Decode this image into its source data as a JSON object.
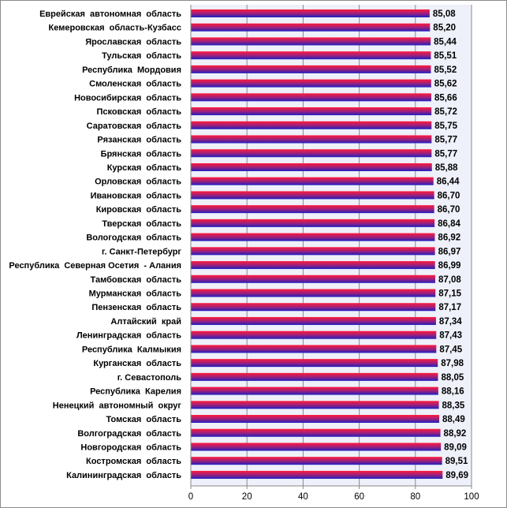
{
  "chart_data": {
    "type": "bar",
    "orientation": "horizontal",
    "categories": [
      "Еврейская  автономная  область",
      "Кемеровская  область-Кузбасс",
      "Ярославская  область",
      "Тульская  область",
      "Республика  Мордовия",
      "Смоленская  область",
      "Новосибирская  область",
      "Псковская  область",
      "Саратовская  область",
      "Рязанская  область",
      "Брянская  область",
      "Курская  область",
      "Орловская  область",
      "Ивановская  область",
      "Кировская  область",
      "Тверская  область",
      "Вологодская  область",
      "г. Санкт-Петербург",
      "Республика  Северная Осетия  - Алания",
      "Тамбовская  область",
      "Мурманская  область",
      "Пензенская  область",
      "Алтайский  край",
      "Ленинградская  область",
      "Республика  Калмыкия",
      "Курганская  область",
      "г. Севастополь",
      "Республика  Карелия",
      "Ненецкий  автономный  округ",
      "Томская  область",
      "Волгоградская  область",
      "Новгородская  область",
      "Костромская  область",
      "Калининградская  область"
    ],
    "values": [
      85.08,
      85.2,
      85.44,
      85.51,
      85.52,
      85.62,
      85.66,
      85.72,
      85.75,
      85.77,
      85.77,
      85.88,
      86.44,
      86.7,
      86.7,
      86.84,
      86.92,
      86.97,
      86.99,
      87.08,
      87.15,
      87.17,
      87.34,
      87.43,
      87.45,
      87.98,
      88.05,
      88.16,
      88.35,
      88.49,
      88.92,
      89.09,
      89.51,
      89.69
    ],
    "value_labels": [
      "85,08",
      "85,20",
      "85,44",
      "85,51",
      "85,52",
      "85,62",
      "85,66",
      "85,72",
      "85,75",
      "85,77",
      "85,77",
      "85,88",
      "86,44",
      "86,70",
      "86,70",
      "86,84",
      "86,92",
      "86,97",
      "86,99",
      "87,08",
      "87,15",
      "87,17",
      "87,34",
      "87,43",
      "87,45",
      "87,98",
      "88,05",
      "88,16",
      "88,35",
      "88,49",
      "88,92",
      "89,09",
      "89,51",
      "89,69"
    ],
    "x_ticks": [
      0,
      20,
      40,
      60,
      80,
      100
    ],
    "xlim": [
      0,
      100
    ],
    "title": "",
    "xlabel": "",
    "ylabel": "",
    "grid": "vertical",
    "colors": {
      "bar_top": "#ff1a3c",
      "bar_bottom": "#1f1fbf",
      "plot_background": "#eef0fa",
      "grid": "#8a8a8a"
    }
  }
}
